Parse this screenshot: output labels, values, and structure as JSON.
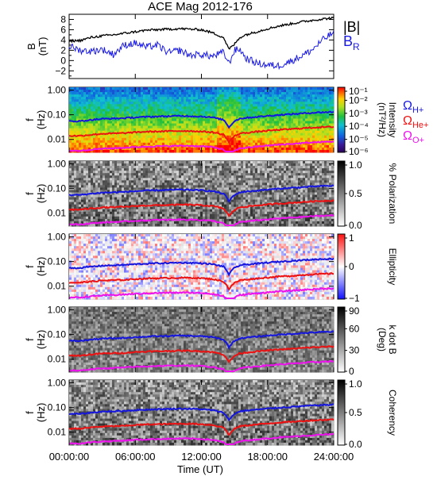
{
  "title": "ACE Mag 2012-176",
  "colors": {
    "btotal": "#000000",
    "br": "#1a1ae6",
    "h_plus": "#1515e0",
    "he_plus": "#ee1111",
    "o_plus": "#ee11ee",
    "frame": "#000000"
  },
  "legend": {
    "btotal": "|B|",
    "br_main": "B",
    "br_sub": "R",
    "h_main": "Ω",
    "h_sub": "H+",
    "he_main": "Ω",
    "he_sub": "He+",
    "o_main": "Ω",
    "o_sub": "O+"
  },
  "x_axis": {
    "label": "Time (UT)",
    "ticks": [
      "00:00:00",
      "06:00:00",
      "12:00:00",
      "18:00:00",
      "24:00:00"
    ],
    "range_hours": [
      0,
      24
    ]
  },
  "panels": [
    {
      "id": "bfield",
      "ylabel_main": "B",
      "ylabel_unit": "(nT)",
      "yticks": [
        "8",
        "6",
        "4",
        "2",
        "0",
        "−2"
      ],
      "yrange": [
        -3.5,
        9
      ],
      "cbar_title": "",
      "cbar_unit": "",
      "cbar_ticks": []
    },
    {
      "id": "intensity",
      "ylabel_main": "f",
      "ylabel_unit": "(Hz)",
      "yticks": [
        "1.00",
        "0.10",
        "0.01"
      ],
      "cbar_title": "Intensity",
      "cbar_unit": "(nT²/Hz)",
      "cbar_ticks": [
        "10⁻¹",
        "10⁻²",
        "10⁻³",
        "10⁻⁴",
        "10⁻⁵",
        "10⁻⁶"
      ],
      "colormap": "rainbow"
    },
    {
      "id": "polarization",
      "ylabel_main": "f",
      "ylabel_unit": "(Hz)",
      "yticks": [
        "1.00",
        "0.10",
        "0.01"
      ],
      "cbar_title": "% Polarization",
      "cbar_unit": "",
      "cbar_ticks": [
        "1.0",
        "0.5",
        "0.0"
      ],
      "colormap": "gray"
    },
    {
      "id": "ellipticity",
      "ylabel_main": "f",
      "ylabel_unit": "(Hz)",
      "yticks": [
        "1.00",
        "0.10",
        "0.01"
      ],
      "cbar_title": "Ellipticity",
      "cbar_unit": "",
      "cbar_ticks": [
        "1",
        "0",
        "−1"
      ],
      "colormap": "bwr"
    },
    {
      "id": "kdotb",
      "ylabel_main": "f",
      "ylabel_unit": "(Hz)",
      "yticks": [
        "1.00",
        "0.10",
        "0.01"
      ],
      "cbar_title": "k dot B",
      "cbar_unit": "(Deg)",
      "cbar_ticks": [
        "90",
        "60",
        "30",
        "0"
      ],
      "colormap": "gray"
    },
    {
      "id": "coherency",
      "ylabel_main": "f",
      "ylabel_unit": "(Hz)",
      "yticks": [
        "1.00",
        "0.10",
        "0.01"
      ],
      "cbar_title": "Coherency",
      "cbar_unit": "",
      "cbar_ticks": [
        "1.0",
        "0.5",
        "0.0"
      ],
      "colormap": "gray"
    }
  ],
  "chart_data": {
    "type": "line",
    "title": "ACE Mag 2012-176",
    "xlabel": "Time (UT)",
    "x_hours": [
      0,
      1,
      2,
      3,
      4,
      5,
      6,
      7,
      8,
      9,
      10,
      11,
      12,
      13,
      14,
      14.5,
      15,
      15.5,
      16,
      17,
      18,
      19,
      20,
      21,
      22,
      23,
      24
    ],
    "btotal_series": {
      "name": "|B|",
      "values": [
        3.8,
        3.9,
        4.5,
        4.8,
        5.0,
        5.3,
        5.6,
        5.9,
        6.0,
        6.1,
        6.2,
        6.1,
        6.0,
        5.4,
        4.5,
        2.2,
        3.2,
        4.5,
        5.0,
        5.6,
        6.2,
        6.7,
        7.1,
        7.5,
        7.8,
        8.1,
        8.3
      ]
    },
    "br_series": {
      "name": "BR",
      "values": [
        2.8,
        2.0,
        1.8,
        2.2,
        1.2,
        3.0,
        3.4,
        2.6,
        3.0,
        1.5,
        2.0,
        1.0,
        1.2,
        0.8,
        1.6,
        -0.6,
        2.0,
        2.2,
        0.5,
        -0.5,
        -0.9,
        -1.0,
        -0.2,
        0.8,
        2.0,
        4.0,
        5.5
      ]
    },
    "b_yticks": [
      8,
      6,
      4,
      2,
      0,
      -2
    ],
    "freq_yticks_hz": [
      1.0,
      0.1,
      0.01
    ],
    "freq_range_hz": [
      0.003,
      1.3
    ],
    "gyro_h_plus_hz": [
      0.055,
      0.055,
      0.062,
      0.068,
      0.07,
      0.073,
      0.078,
      0.082,
      0.085,
      0.087,
      0.09,
      0.088,
      0.085,
      0.078,
      0.062,
      0.03,
      0.055,
      0.07,
      0.075,
      0.082,
      0.09,
      0.098,
      0.105,
      0.112,
      0.12,
      0.126,
      0.13
    ],
    "gyro_he_plus_hz": [
      0.014,
      0.014,
      0.0155,
      0.017,
      0.0175,
      0.018,
      0.0195,
      0.0205,
      0.021,
      0.0215,
      0.022,
      0.022,
      0.021,
      0.0195,
      0.0155,
      0.0075,
      0.0135,
      0.0175,
      0.0185,
      0.0205,
      0.0225,
      0.0245,
      0.026,
      0.028,
      0.03,
      0.0315,
      0.0325
    ],
    "gyro_o_plus_hz": [
      0.0035,
      0.0035,
      0.0039,
      0.0042,
      0.0044,
      0.0046,
      0.0049,
      0.0051,
      0.0053,
      0.0054,
      0.0055,
      0.0055,
      0.0053,
      0.0049,
      0.0039,
      0.0019,
      0.0034,
      0.0044,
      0.0046,
      0.0051,
      0.0056,
      0.0061,
      0.0065,
      0.007,
      0.0075,
      0.0079,
      0.0082
    ]
  }
}
